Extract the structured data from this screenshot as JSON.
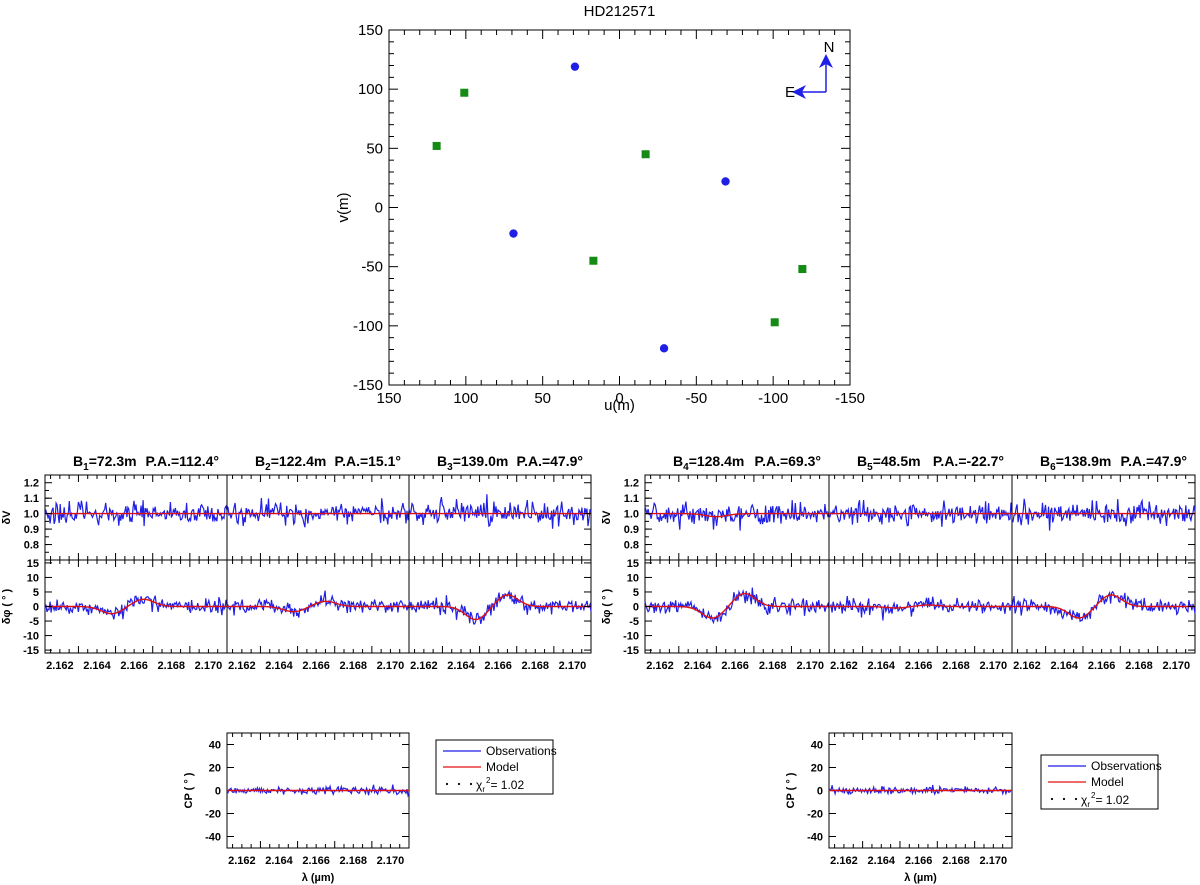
{
  "chart_data": [
    {
      "type": "scatter",
      "title": "HD212571",
      "xlabel": "u(m)",
      "ylabel": "v(m)",
      "xlim": [
        150,
        -150
      ],
      "ylim": [
        -150,
        150
      ],
      "xticks": [
        "150",
        "100",
        "50",
        "0",
        "-50",
        "-100",
        "-150"
      ],
      "yticks": [
        "150",
        "100",
        "50",
        "0",
        "-50",
        "-100",
        "-150"
      ],
      "compass": {
        "north": "N",
        "east": "E"
      },
      "series": [
        {
          "marker": "circle",
          "color": "#1f1fe6",
          "points": [
            [
              29,
              119
            ],
            [
              -29,
              -119
            ],
            [
              69,
              -22
            ],
            [
              -69,
              22
            ]
          ]
        },
        {
          "marker": "square",
          "color": "#158a15",
          "points": [
            [
              101,
              97
            ],
            [
              -101,
              -97
            ],
            [
              119,
              52
            ],
            [
              -119,
              -52
            ],
            [
              17,
              -45
            ],
            [
              -17,
              45
            ]
          ]
        }
      ]
    },
    {
      "type": "line",
      "panel_group": "left",
      "baselines": [
        {
          "label": "B1=72.3m",
          "pa": "P.A.=112.4°"
        },
        {
          "label": "B2=122.4m",
          "pa": "P.A.=15.1°"
        },
        {
          "label": "B3=139.0m",
          "pa": "P.A.=47.9°"
        }
      ],
      "x_range": [
        2.1612,
        2.171
      ],
      "xticks": [
        "2.162",
        "2.164",
        "2.166",
        "2.168",
        "2.170"
      ],
      "xlabel": "λ (µm)",
      "dv": {
        "ylabel": "δV",
        "ylim": [
          0.7,
          1.25
        ],
        "yticks": [
          "0.8",
          "0.9",
          "1.0",
          "1.1",
          "1.2"
        ]
      },
      "dphi": {
        "ylabel": "δφ ( ° )",
        "ylim": [
          -16,
          16
        ],
        "yticks": [
          "-15",
          "-10",
          "-5",
          "0",
          "5",
          "10",
          "15"
        ]
      },
      "cp": {
        "ylabel": "CP ( ° )",
        "ylim": [
          -50,
          50
        ],
        "yticks": [
          "-40",
          "-20",
          "0",
          "20",
          "40"
        ]
      },
      "model_dips": {
        "dv": [
          [
            0.0,
            0.0
          ],
          [
            0.0,
            0.0
          ],
          [
            0.0,
            0.0
          ]
        ],
        "dphi": [
          [
            -2.5,
            2.5
          ],
          [
            -1.8,
            1.8
          ],
          [
            -4.5,
            4.0
          ]
        ]
      }
    },
    {
      "type": "line",
      "panel_group": "right",
      "baselines": [
        {
          "label": "B4=128.4m",
          "pa": "P.A.=69.3°"
        },
        {
          "label": "B5=48.5m",
          "pa": "P.A.=-22.7°"
        },
        {
          "label": "B6=138.9m",
          "pa": "P.A.=47.9°"
        }
      ],
      "x_range": [
        2.1612,
        2.171
      ],
      "xticks": [
        "2.162",
        "2.164",
        "2.166",
        "2.168",
        "2.170"
      ],
      "xlabel": "λ (µm)",
      "dv": {
        "ylabel": "δV",
        "ylim": [
          0.7,
          1.25
        ],
        "yticks": [
          "0.8",
          "0.9",
          "1.0",
          "1.1",
          "1.2"
        ]
      },
      "dphi": {
        "ylabel": "δφ ( ° )",
        "ylim": [
          -16,
          16
        ],
        "yticks": [
          "-15",
          "-10",
          "-5",
          "0",
          "5",
          "10",
          "15"
        ]
      },
      "cp": {
        "ylabel": "CP ( ° )",
        "ylim": [
          -50,
          50
        ],
        "yticks": [
          "-40",
          "-20",
          "0",
          "20",
          "40"
        ]
      },
      "model_dips": {
        "dv": [
          [
            -0.02,
            0.0
          ],
          [
            0.0,
            0.0
          ],
          [
            0.0,
            0.0
          ]
        ],
        "dphi": [
          [
            -4.0,
            4.5
          ],
          [
            -0.5,
            0.5
          ],
          [
            -4.0,
            4.0
          ]
        ]
      }
    }
  ],
  "legend": {
    "observations": "Observations",
    "model": "Model",
    "chi": "χ",
    "chi_sub": "r",
    "chi_sup": "2",
    "chi_value": "= 1.02",
    "obs_color": "#1f1fe6",
    "model_color": "#e01010"
  }
}
